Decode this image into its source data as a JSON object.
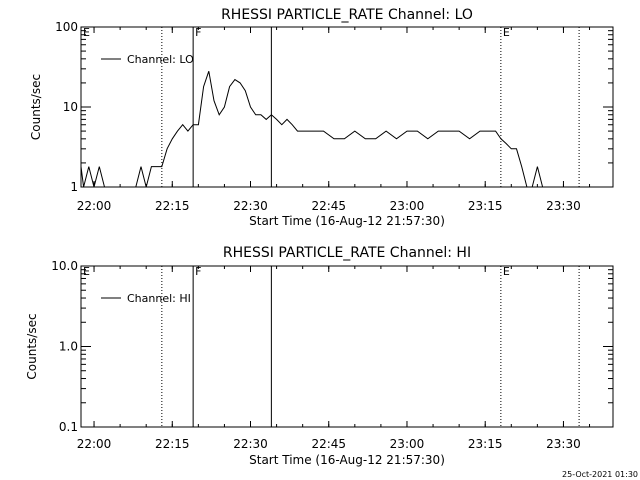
{
  "chart_data": [
    {
      "type": "line",
      "title": "RHESSI PARTICLE_RATE Channel: LO",
      "xlabel": "Start Time (16-Aug-12 21:57:30)",
      "ylabel": "Counts/sec",
      "yscale": "log",
      "ylim": [
        1,
        100
      ],
      "xlim": [
        "21:57:30",
        "23:39:30"
      ],
      "xticks": [
        "22:00",
        "22:15",
        "22:30",
        "22:45",
        "23:00",
        "23:15",
        "23:30"
      ],
      "yticks": [
        "1",
        "10",
        "100"
      ],
      "legend": {
        "entries": [
          "Channel: LO"
        ],
        "placement": "top-left"
      },
      "markers": [
        {
          "label": "E",
          "time": "21:57:30",
          "style": "dotted"
        },
        {
          "label": "",
          "time": "22:13:00",
          "style": "dotted"
        },
        {
          "label": "F",
          "time": "22:19:00",
          "style": "solid"
        },
        {
          "label": "",
          "time": "22:34:00",
          "style": "solid"
        },
        {
          "label": "E",
          "time": "23:18:00",
          "style": "dotted"
        },
        {
          "label": "",
          "time": "23:33:00",
          "style": "dotted"
        }
      ],
      "series": [
        {
          "name": "Channel: LO",
          "x": [
            "21:57:30",
            "21:58:00",
            "21:59:00",
            "22:00:00",
            "22:01:00",
            "22:02:00",
            "22:03:00",
            "22:04:00",
            "22:05:00",
            "22:06:00",
            "22:07:00",
            "22:08:00",
            "22:09:00",
            "22:10:00",
            "22:11:00",
            "22:12:00",
            "22:13:00",
            "22:14:00",
            "22:15:00",
            "22:16:00",
            "22:17:00",
            "22:18:00",
            "22:19:00",
            "22:20:00",
            "22:21:00",
            "22:22:00",
            "22:23:00",
            "22:24:00",
            "22:25:00",
            "22:26:00",
            "22:27:00",
            "22:28:00",
            "22:29:00",
            "22:30:00",
            "22:31:00",
            "22:32:00",
            "22:33:00",
            "22:34:00",
            "22:35:00",
            "22:36:00",
            "22:37:00",
            "22:38:00",
            "22:39:00",
            "22:40:00",
            "22:42:00",
            "22:44:00",
            "22:46:00",
            "22:48:00",
            "22:50:00",
            "22:52:00",
            "22:54:00",
            "22:56:00",
            "22:58:00",
            "23:00:00",
            "23:02:00",
            "23:04:00",
            "23:06:00",
            "23:08:00",
            "23:10:00",
            "23:12:00",
            "23:14:00",
            "23:16:00",
            "23:17:00",
            "23:18:00",
            "23:19:00",
            "23:20:00",
            "23:21:00",
            "23:22:00",
            "23:23:00",
            "23:24:00",
            "23:25:00",
            "23:26:00",
            "23:27:00",
            "23:28:00"
          ],
          "y": [
            1.8,
            1,
            1.8,
            1,
            1.8,
            1,
            1,
            1,
            1,
            1,
            1,
            1,
            1.8,
            1,
            1.8,
            1.8,
            1.8,
            3,
            4,
            5,
            6,
            5,
            6,
            6,
            18,
            28,
            12,
            8,
            10,
            18,
            22,
            20,
            16,
            10,
            8,
            8,
            7,
            8,
            7,
            6,
            7,
            6,
            5,
            5,
            5,
            5,
            4,
            4,
            5,
            4,
            4,
            5,
            4,
            5,
            5,
            4,
            5,
            5,
            5,
            4,
            5,
            5,
            5,
            4,
            3.5,
            3,
            3,
            1.8,
            1,
            1,
            1.8,
            1,
            1,
            1
          ]
        }
      ]
    },
    {
      "type": "line",
      "title": "RHESSI PARTICLE_RATE Channel: HI",
      "xlabel": "Start Time (16-Aug-12 21:57:30)",
      "ylabel": "Counts/sec",
      "yscale": "log",
      "ylim": [
        0.1,
        10
      ],
      "xlim": [
        "21:57:30",
        "23:39:30"
      ],
      "xticks": [
        "22:00",
        "22:15",
        "22:30",
        "22:45",
        "23:00",
        "23:15",
        "23:30"
      ],
      "yticks": [
        "0.1",
        "1.0",
        "10.0"
      ],
      "legend": {
        "entries": [
          "Channel: HI"
        ],
        "placement": "top-left"
      },
      "markers": [
        {
          "label": "E",
          "time": "21:57:30",
          "style": "dotted"
        },
        {
          "label": "",
          "time": "22:13:00",
          "style": "dotted"
        },
        {
          "label": "F",
          "time": "22:19:00",
          "style": "solid"
        },
        {
          "label": "",
          "time": "22:34:00",
          "style": "solid"
        },
        {
          "label": "E",
          "time": "23:18:00",
          "style": "dotted"
        },
        {
          "label": "",
          "time": "23:33:00",
          "style": "dotted"
        }
      ],
      "series": [
        {
          "name": "Channel: HI",
          "x": [],
          "y": []
        }
      ]
    }
  ],
  "footer": {
    "timestamp": "25-Oct-2021 01:30"
  }
}
